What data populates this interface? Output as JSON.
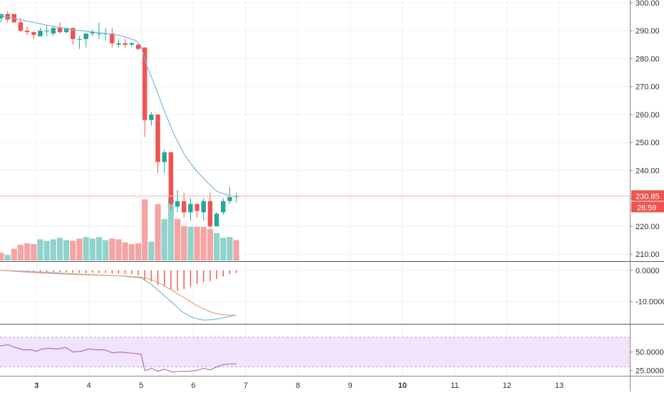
{
  "colors": {
    "up": "#26a69a",
    "down": "#ef5350",
    "up_vol": "#8fd3cc",
    "down_vol": "#f5a3a3",
    "ma": "#7ab8d6",
    "macd_signal": "#f39c70",
    "rsi": "#b26fb0",
    "rsi_band": "#f1e3fb",
    "price_tag": "#ef5350",
    "grid": "#eef0f3",
    "axis_text": "#333333"
  },
  "price_tag": {
    "price": "230.85",
    "countdown": "26:59"
  },
  "chart_data": [
    {
      "type": "candlestick",
      "name": "price",
      "x_ticks": [
        {
          "pos": 3,
          "label": "3",
          "bold": true
        },
        {
          "pos": 4,
          "label": "4",
          "bold": false
        },
        {
          "pos": 5,
          "label": "5",
          "bold": false
        },
        {
          "pos": 6,
          "label": "6",
          "bold": false
        },
        {
          "pos": 7,
          "label": "7",
          "bold": false
        },
        {
          "pos": 8,
          "label": "8",
          "bold": false
        },
        {
          "pos": 9,
          "label": "9",
          "bold": false
        },
        {
          "pos": 10,
          "label": "10",
          "bold": true
        },
        {
          "pos": 11,
          "label": "11",
          "bold": false
        },
        {
          "pos": 12,
          "label": "12",
          "bold": false
        },
        {
          "pos": 13,
          "label": "13",
          "bold": false
        }
      ],
      "y_ticks": [
        "210.00",
        "220.00",
        "230.00",
        "240.00",
        "250.00",
        "260.00",
        "270.00",
        "280.00",
        "290.00",
        "300.00"
      ],
      "ylim": [
        207.5,
        301
      ],
      "xlim": [
        2.3,
        14.35
      ],
      "last_price": 230.85,
      "candles": [
        {
          "t": 2.32,
          "o": 294.5,
          "h": 296.0,
          "l": 293.0,
          "c": 296.0
        },
        {
          "t": 2.445,
          "o": 296.0,
          "h": 297.0,
          "l": 293.0,
          "c": 294.0
        },
        {
          "t": 2.57,
          "o": 296.0,
          "h": 296.0,
          "l": 293.0,
          "c": 293.0
        },
        {
          "t": 2.695,
          "o": 293.0,
          "h": 294.5,
          "l": 289.5,
          "c": 290.0
        },
        {
          "t": 2.82,
          "o": 290.0,
          "h": 291.5,
          "l": 288.5,
          "c": 289.5
        },
        {
          "t": 2.945,
          "o": 289.5,
          "h": 290.0,
          "l": 287.0,
          "c": 288.5
        },
        {
          "t": 3.07,
          "o": 288.0,
          "h": 291.0,
          "l": 288.0,
          "c": 290.0
        },
        {
          "t": 3.195,
          "o": 290.0,
          "h": 292.0,
          "l": 288.0,
          "c": 290.0
        },
        {
          "t": 3.32,
          "o": 289.0,
          "h": 291.5,
          "l": 288.0,
          "c": 291.0
        },
        {
          "t": 3.445,
          "o": 291.0,
          "h": 293.0,
          "l": 289.0,
          "c": 289.5
        },
        {
          "t": 3.57,
          "o": 289.5,
          "h": 291.0,
          "l": 289.0,
          "c": 291.0
        },
        {
          "t": 3.695,
          "o": 291.0,
          "h": 291.0,
          "l": 285.0,
          "c": 287.0
        },
        {
          "t": 3.82,
          "o": 287.0,
          "h": 288.0,
          "l": 283.5,
          "c": 287.0
        },
        {
          "t": 3.945,
          "o": 287.0,
          "h": 289.0,
          "l": 284.0,
          "c": 289.0
        },
        {
          "t": 4.07,
          "o": 289.0,
          "h": 290.5,
          "l": 288.0,
          "c": 289.5
        },
        {
          "t": 4.195,
          "o": 289.0,
          "h": 293.0,
          "l": 287.0,
          "c": 289.0
        },
        {
          "t": 4.32,
          "o": 289.0,
          "h": 291.0,
          "l": 286.5,
          "c": 289.0
        },
        {
          "t": 4.445,
          "o": 289.0,
          "h": 291.0,
          "l": 284.0,
          "c": 285.5
        },
        {
          "t": 4.57,
          "o": 285.0,
          "h": 287.0,
          "l": 284.0,
          "c": 285.5
        },
        {
          "t": 4.695,
          "o": 285.5,
          "h": 287.0,
          "l": 284.0,
          "c": 285.0
        },
        {
          "t": 4.82,
          "o": 285.0,
          "h": 286.0,
          "l": 284.0,
          "c": 285.5
        },
        {
          "t": 4.945,
          "o": 285.0,
          "h": 285.5,
          "l": 283.0,
          "c": 283.5
        },
        {
          "t": 5.07,
          "o": 284.0,
          "h": 284.0,
          "l": 252.0,
          "c": 258.0
        },
        {
          "t": 5.195,
          "o": 258.0,
          "h": 261.0,
          "l": 256.0,
          "c": 260.0
        },
        {
          "t": 5.32,
          "o": 260.0,
          "h": 260.0,
          "l": 239.0,
          "c": 243.0
        },
        {
          "t": 5.445,
          "o": 243.0,
          "h": 247.5,
          "l": 239.0,
          "c": 246.5
        },
        {
          "t": 5.57,
          "o": 246.5,
          "h": 246.5,
          "l": 226.0,
          "c": 228.0
        },
        {
          "t": 5.695,
          "o": 227.0,
          "h": 233.0,
          "l": 225.0,
          "c": 229.0
        },
        {
          "t": 5.82,
          "o": 229.0,
          "h": 232.0,
          "l": 223.0,
          "c": 225.0
        },
        {
          "t": 5.945,
          "o": 225.0,
          "h": 230.0,
          "l": 222.0,
          "c": 228.0
        },
        {
          "t": 6.07,
          "o": 228.0,
          "h": 228.0,
          "l": 223.0,
          "c": 225.5
        },
        {
          "t": 6.195,
          "o": 225.0,
          "h": 230.0,
          "l": 222.0,
          "c": 229.0
        },
        {
          "t": 6.32,
          "o": 229.0,
          "h": 232.0,
          "l": 219.0,
          "c": 220.0
        },
        {
          "t": 6.445,
          "o": 220.0,
          "h": 225.0,
          "l": 220.0,
          "c": 224.5
        },
        {
          "t": 6.57,
          "o": 225.0,
          "h": 230.0,
          "l": 224.0,
          "c": 229.0
        },
        {
          "t": 6.695,
          "o": 229.0,
          "h": 234.0,
          "l": 228.0,
          "c": 230.5
        },
        {
          "t": 6.82,
          "o": 230.5,
          "h": 232.0,
          "l": 228.5,
          "c": 230.85
        }
      ],
      "ma": [
        [
          2.3,
          295.5
        ],
        [
          2.8,
          293.5
        ],
        [
          3.2,
          292.0
        ],
        [
          3.7,
          290.3
        ],
        [
          4.2,
          289.3
        ],
        [
          4.6,
          288.3
        ],
        [
          4.9,
          286.5
        ],
        [
          5.0,
          284.5
        ],
        [
          5.1,
          278.0
        ],
        [
          5.25,
          271.0
        ],
        [
          5.45,
          261.0
        ],
        [
          5.65,
          252.0
        ],
        [
          5.85,
          245.0
        ],
        [
          6.05,
          240.0
        ],
        [
          6.25,
          236.0
        ],
        [
          6.45,
          232.5
        ],
        [
          6.6,
          231.5
        ],
        [
          6.82,
          230.5
        ]
      ],
      "volume_ylim": [
        0,
        100
      ],
      "volume": [
        {
          "t": 2.32,
          "v": 10,
          "up": false
        },
        {
          "t": 2.445,
          "v": 7,
          "up": true
        },
        {
          "t": 2.57,
          "v": 15,
          "up": false
        },
        {
          "t": 2.695,
          "v": 20,
          "up": false
        },
        {
          "t": 2.82,
          "v": 22,
          "up": false
        },
        {
          "t": 2.945,
          "v": 21,
          "up": false
        },
        {
          "t": 3.07,
          "v": 27,
          "up": true
        },
        {
          "t": 3.195,
          "v": 25,
          "up": true
        },
        {
          "t": 3.32,
          "v": 27,
          "up": true
        },
        {
          "t": 3.445,
          "v": 29,
          "up": true
        },
        {
          "t": 3.57,
          "v": 26,
          "up": true
        },
        {
          "t": 3.695,
          "v": 25,
          "up": false
        },
        {
          "t": 3.82,
          "v": 28,
          "up": false
        },
        {
          "t": 3.945,
          "v": 30,
          "up": true
        },
        {
          "t": 4.07,
          "v": 28,
          "up": true
        },
        {
          "t": 4.195,
          "v": 30,
          "up": true
        },
        {
          "t": 4.32,
          "v": 26,
          "up": true
        },
        {
          "t": 4.445,
          "v": 28,
          "up": false
        },
        {
          "t": 4.57,
          "v": 27,
          "up": false
        },
        {
          "t": 4.695,
          "v": 23,
          "up": false
        },
        {
          "t": 4.82,
          "v": 21,
          "up": false
        },
        {
          "t": 4.945,
          "v": 22,
          "up": false
        },
        {
          "t": 5.07,
          "v": 78,
          "up": false
        },
        {
          "t": 5.195,
          "v": 24,
          "up": true
        },
        {
          "t": 5.32,
          "v": 72,
          "up": false
        },
        {
          "t": 5.445,
          "v": 53,
          "up": true
        },
        {
          "t": 5.57,
          "v": 80,
          "up": true
        },
        {
          "t": 5.695,
          "v": 53,
          "up": false
        },
        {
          "t": 5.82,
          "v": 44,
          "up": false
        },
        {
          "t": 5.945,
          "v": 43,
          "up": true
        },
        {
          "t": 6.07,
          "v": 43,
          "up": false
        },
        {
          "t": 6.195,
          "v": 43,
          "up": false
        },
        {
          "t": 6.32,
          "v": 40,
          "up": false
        },
        {
          "t": 6.445,
          "v": 35,
          "up": true
        },
        {
          "t": 6.57,
          "v": 29,
          "up": true
        },
        {
          "t": 6.695,
          "v": 30,
          "up": true
        },
        {
          "t": 6.82,
          "v": 26,
          "up": false
        }
      ]
    },
    {
      "type": "macd",
      "name": "macd",
      "y_ticks": [
        "0.0000",
        "-10.0000"
      ],
      "ylim": [
        -17.2,
        2.7
      ],
      "macd": [
        [
          2.3,
          0.0
        ],
        [
          3.0,
          -0.5
        ],
        [
          3.8,
          -1.2
        ],
        [
          4.6,
          -1.8
        ],
        [
          5.0,
          -2.5
        ],
        [
          5.2,
          -4.5
        ],
        [
          5.4,
          -7.5
        ],
        [
          5.6,
          -10.5
        ],
        [
          5.8,
          -13.5
        ],
        [
          6.0,
          -15.3
        ],
        [
          6.2,
          -16.0
        ],
        [
          6.4,
          -15.8
        ],
        [
          6.6,
          -15.2
        ],
        [
          6.82,
          -14.4
        ]
      ],
      "signal": [
        [
          2.3,
          0.0
        ],
        [
          3.0,
          -0.8
        ],
        [
          3.8,
          -1.4
        ],
        [
          4.6,
          -1.8
        ],
        [
          5.0,
          -2.2
        ],
        [
          5.2,
          -3.0
        ],
        [
          5.4,
          -4.5
        ],
        [
          5.6,
          -6.5
        ],
        [
          5.8,
          -8.6
        ],
        [
          6.0,
          -10.7
        ],
        [
          6.2,
          -12.5
        ],
        [
          6.4,
          -13.8
        ],
        [
          6.6,
          -14.4
        ],
        [
          6.82,
          -14.4
        ]
      ],
      "histogram": [
        {
          "t": 2.32,
          "v": -0.1
        },
        {
          "t": 2.445,
          "v": -0.1
        },
        {
          "t": 2.57,
          "v": -0.1
        },
        {
          "t": 2.695,
          "v": -0.1
        },
        {
          "t": 2.82,
          "v": -0.2
        },
        {
          "t": 2.945,
          "v": -0.3
        },
        {
          "t": 3.07,
          "v": -0.4
        },
        {
          "t": 3.195,
          "v": -0.5
        },
        {
          "t": 3.32,
          "v": -0.6
        },
        {
          "t": 3.445,
          "v": -0.6
        },
        {
          "t": 3.57,
          "v": -0.6
        },
        {
          "t": 3.695,
          "v": -0.8
        },
        {
          "t": 3.82,
          "v": -0.9
        },
        {
          "t": 3.945,
          "v": -0.9
        },
        {
          "t": 4.07,
          "v": -0.8
        },
        {
          "t": 4.195,
          "v": -0.9
        },
        {
          "t": 4.32,
          "v": -0.9
        },
        {
          "t": 4.445,
          "v": -1.0
        },
        {
          "t": 4.57,
          "v": -1.0
        },
        {
          "t": 4.695,
          "v": -1.2
        },
        {
          "t": 4.82,
          "v": -1.3
        },
        {
          "t": 4.945,
          "v": -1.6
        },
        {
          "t": 5.07,
          "v": -3.3
        },
        {
          "t": 5.195,
          "v": -3.6
        },
        {
          "t": 5.32,
          "v": -4.7
        },
        {
          "t": 5.445,
          "v": -5.2
        },
        {
          "t": 5.57,
          "v": -6.0
        },
        {
          "t": 5.695,
          "v": -6.6
        },
        {
          "t": 5.82,
          "v": -6.0
        },
        {
          "t": 5.945,
          "v": -5.2
        },
        {
          "t": 6.07,
          "v": -4.5
        },
        {
          "t": 6.195,
          "v": -3.8
        },
        {
          "t": 6.32,
          "v": -3.5
        },
        {
          "t": 6.445,
          "v": -2.8
        },
        {
          "t": 6.57,
          "v": -2.0
        },
        {
          "t": 6.695,
          "v": -1.3
        },
        {
          "t": 6.82,
          "v": -0.9
        }
      ]
    },
    {
      "type": "rsi",
      "name": "rsi",
      "y_ticks": [
        "50.0000",
        "25.0000"
      ],
      "ylim": [
        18,
        87
      ],
      "band": [
        30,
        70
      ],
      "values": [
        [
          2.3,
          58
        ],
        [
          2.45,
          60
        ],
        [
          2.6,
          56
        ],
        [
          2.75,
          53
        ],
        [
          2.9,
          53
        ],
        [
          3.0,
          51
        ],
        [
          3.1,
          54
        ],
        [
          3.25,
          55
        ],
        [
          3.4,
          54
        ],
        [
          3.55,
          56
        ],
        [
          3.7,
          50
        ],
        [
          3.85,
          51
        ],
        [
          4.0,
          54
        ],
        [
          4.15,
          53
        ],
        [
          4.3,
          53
        ],
        [
          4.45,
          49
        ],
        [
          4.6,
          50
        ],
        [
          4.75,
          49
        ],
        [
          4.9,
          48
        ],
        [
          5.0,
          47
        ],
        [
          5.07,
          25
        ],
        [
          5.2,
          28
        ],
        [
          5.32,
          24
        ],
        [
          5.45,
          27
        ],
        [
          5.6,
          23
        ],
        [
          5.75,
          24
        ],
        [
          5.9,
          24
        ],
        [
          6.05,
          25
        ],
        [
          6.2,
          28
        ],
        [
          6.32,
          26
        ],
        [
          6.45,
          30
        ],
        [
          6.57,
          33
        ],
        [
          6.7,
          34
        ],
        [
          6.82,
          34
        ]
      ]
    }
  ]
}
